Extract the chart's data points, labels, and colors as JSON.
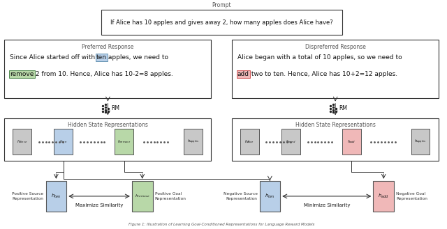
{
  "bg_color": "#ffffff",
  "prompt_text": "If Alice has 10 apples and gives away 2, how many apples does Alice have?",
  "prompt_label": "Prompt",
  "preferred_label": "Preferred Response",
  "dispreferred_label": "Dispreferred Response",
  "hidden_state_label": "Hidden State Representations",
  "rm_label": "RM",
  "pos_source_label": "Positive Source\nRepresentation",
  "pos_goal_label": "Positive Goal\nRepresentation",
  "neg_source_label": "Negative Source\nRepresentation",
  "neg_goal_label": "Negative Goal\nRepresentation",
  "maximize_label": "Maximize Similarity",
  "minimize_label": "Minimize Similarity",
  "caption": "Figure 1: Illustration of Learning Goal-Conditioned Representations for Language Reward Models",
  "blue_color": "#b8cfe8",
  "green_color": "#b8d8a8",
  "red_color": "#f0b8b8",
  "gray_color": "#c8c8c8",
  "pref_line1": "Since Alice started off with ",
  "pref_word1": "ten",
  "pref_line1_suf": " apples, we need to",
  "pref_word2": "remove",
  "pref_line2_suf": " 2 from 10. Hence, Alice has 10-2=8 apples.",
  "disp_line1": "Alice began with a total of 10 apples, so we need to",
  "disp_word": "add",
  "disp_line2_suf": " two to ten. Hence, Alice has 10+2=12 apples."
}
